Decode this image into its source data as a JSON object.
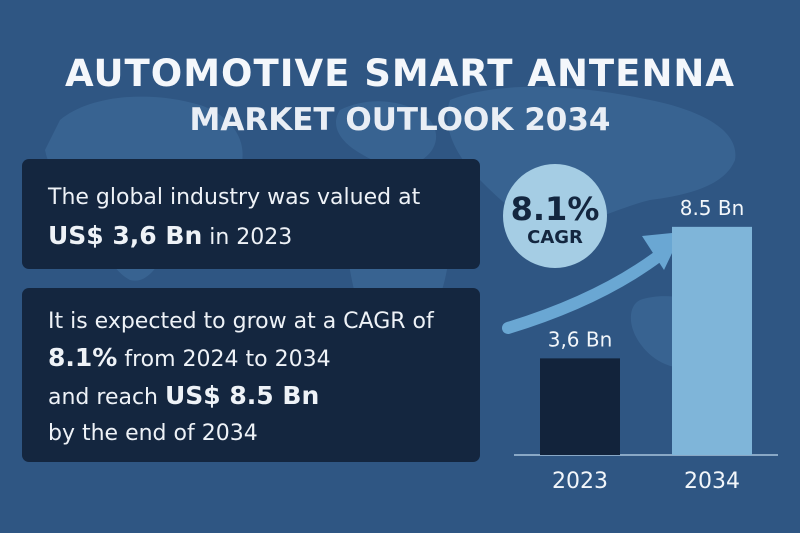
{
  "title": {
    "line1": "AUTOMOTIVE SMART ANTENNA",
    "line2": "MARKET OUTLOOK 2034"
  },
  "panel1": {
    "line1": "The global industry was valued at",
    "value": "US$ 3,6 Bn",
    "suffix": "in 2023"
  },
  "panel2": {
    "line1": "It is expected to grow at a CAGR of",
    "cagr": "8.1%",
    "period": "from 2024 to 2034",
    "reach_prefix": "and reach",
    "reach_value": "US$ 8.5 Bn",
    "line4": "by the end of 2034"
  },
  "badge": {
    "value": "8.1%",
    "label": "CAGR"
  },
  "colors": {
    "background": "#2f5683",
    "panel": "#14263f",
    "bar_2023": "#12233b",
    "bar_2034": "#7fb5d9",
    "badge": "#a5cde4",
    "arrow": "#6aa7d3"
  },
  "chart_data": {
    "type": "bar",
    "categories": [
      "2023",
      "2034"
    ],
    "values": [
      3.6,
      8.5
    ],
    "value_labels": [
      "3,6 Bn",
      "8.5 Bn"
    ],
    "title": "",
    "xlabel": "",
    "ylabel": "",
    "ylim": [
      0,
      9.5
    ],
    "grid": false,
    "legend": "none"
  }
}
